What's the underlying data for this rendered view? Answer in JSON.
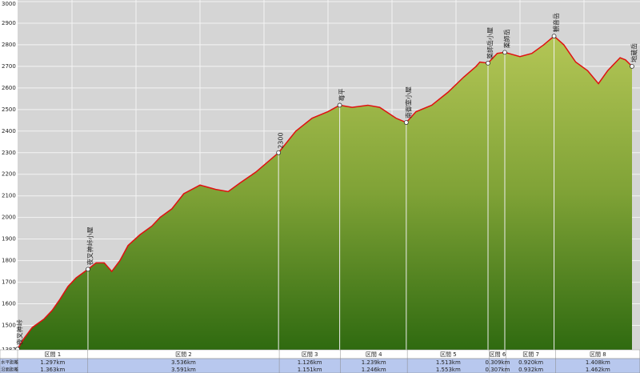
{
  "chart_data": {
    "type": "area",
    "ylim": [
      1387,
      3000
    ],
    "yticks": [
      1387,
      1500,
      1600,
      1700,
      1800,
      1900,
      2000,
      2100,
      2200,
      2300,
      2400,
      2500,
      2600,
      2700,
      2800,
      2900,
      3000
    ],
    "grid": true,
    "color": "#e01010",
    "x": [
      0,
      0.12,
      0.27,
      0.49,
      0.64,
      0.78,
      0.93,
      1.08,
      1.3,
      1.45,
      1.6,
      1.74,
      1.89,
      2.04,
      2.26,
      2.48,
      2.63,
      2.85,
      3.07,
      3.37,
      3.66,
      3.89,
      4.11,
      4.4,
      4.82,
      5.14,
      5.44,
      5.73,
      5.95,
      6.18,
      6.47,
      6.69,
      6.99,
      7.18,
      7.36,
      7.65,
      7.95,
      8.24,
      8.47,
      8.54,
      8.69,
      8.86,
      9.0,
      9.28,
      9.5,
      9.72,
      9.91,
      10.09,
      10.31,
      10.53,
      10.73,
      10.9,
      11.13,
      11.23,
      11.35
    ],
    "values": [
      1390,
      1440,
      1490,
      1530,
      1570,
      1620,
      1680,
      1720,
      1760,
      1790,
      1790,
      1750,
      1800,
      1870,
      1920,
      1960,
      2000,
      2040,
      2110,
      2150,
      2130,
      2120,
      2160,
      2210,
      2300,
      2400,
      2460,
      2490,
      2520,
      2510,
      2520,
      2510,
      2460,
      2440,
      2490,
      2520,
      2580,
      2650,
      2700,
      2720,
      2715,
      2760,
      2765,
      2745,
      2760,
      2800,
      2840,
      2800,
      2720,
      2680,
      2620,
      2680,
      2740,
      2730,
      2700
    ],
    "waypoints": [
      {
        "name": "夜叉神峠",
        "x": 0,
        "elevation": 1390
      },
      {
        "name": "夜叉神峠小屋",
        "x": 1.3,
        "elevation": 1760
      },
      {
        "name": "2300",
        "x": 4.82,
        "elevation": 2300
      },
      {
        "name": "苺平",
        "x": 5.95,
        "elevation": 2520
      },
      {
        "name": "南御室小屋",
        "x": 7.18,
        "elevation": 2440
      },
      {
        "name": "薬師岳小屋",
        "x": 8.69,
        "elevation": 2715
      },
      {
        "name": "薬師岳",
        "x": 9.0,
        "elevation": 2765
      },
      {
        "name": "観音岳",
        "x": 9.91,
        "elevation": 2840
      },
      {
        "name": "地蔵岳",
        "x": 11.35,
        "elevation": 2700
      }
    ],
    "table": {
      "row_labels": [
        "水平距離",
        "沿面距離"
      ],
      "sections": [
        "区間 1",
        "区間 2",
        "区間 3",
        "区間 4",
        "区間 5",
        "区間 6",
        "区間 7",
        "区間 8"
      ],
      "rows": [
        [
          "1.297km",
          "3.536km",
          "1.126km",
          "1.239km",
          "1.513km",
          "0.309km",
          "0.920km",
          "1.408km"
        ],
        [
          "1.363km",
          "3.591km",
          "1.151km",
          "1.246km",
          "1.553km",
          "0.307km",
          "0.932km",
          "1.462km"
        ]
      ]
    }
  }
}
